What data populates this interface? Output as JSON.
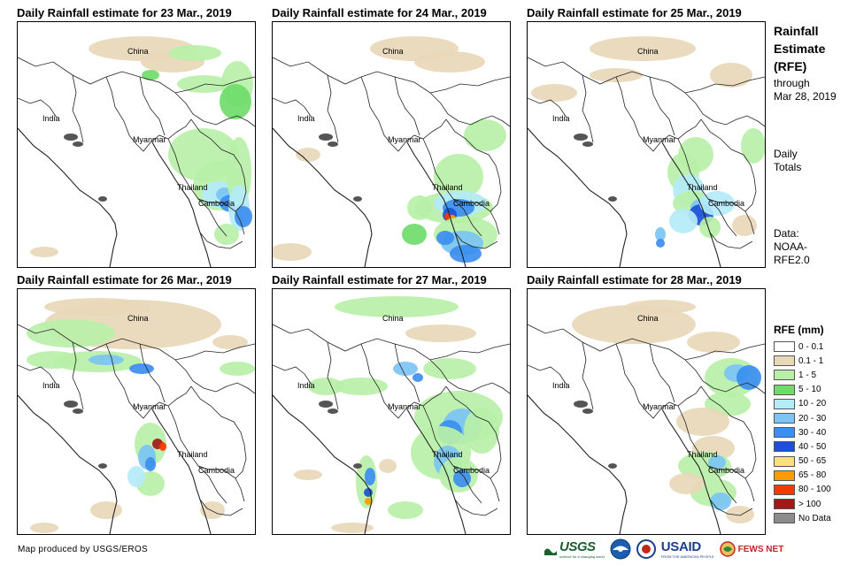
{
  "panels": [
    {
      "title": "Daily Rainfall estimate for 23 Mar., 2019"
    },
    {
      "title": "Daily Rainfall estimate for 24 Mar., 2019"
    },
    {
      "title": "Daily Rainfall estimate for 25 Mar., 2019"
    },
    {
      "title": "Daily Rainfall estimate for 26 Mar., 2019"
    },
    {
      "title": "Daily Rainfall estimate for 27 Mar., 2019"
    },
    {
      "title": "Daily Rainfall estimate for 28 Mar., 2019"
    }
  ],
  "map_labels": {
    "china": "China",
    "india": "India",
    "myanmar": "Myanmar",
    "thailand": "Thailand",
    "cambodia": "Cambodia"
  },
  "sidebar": {
    "title_line1": "Rainfall",
    "title_line2": "Estimate",
    "title_line3": "(RFE)",
    "through": "through",
    "date": "Mar 28, 2019",
    "daily": "Daily",
    "totals": "Totals",
    "data_label": "Data:",
    "data_source1": "NOAA-",
    "data_source2": "RFE2.0"
  },
  "legend": {
    "title": "RFE (mm)",
    "items": [
      {
        "label": "0 - 0.1",
        "color": "#ffffff"
      },
      {
        "label": "0.1 - 1",
        "color": "#e8d8b8"
      },
      {
        "label": "1 - 5",
        "color": "#b8f0a8"
      },
      {
        "label": "5 - 10",
        "color": "#6fdc6a"
      },
      {
        "label": "10 - 20",
        "color": "#b4ecf8"
      },
      {
        "label": "20 - 30",
        "color": "#7cc4f4"
      },
      {
        "label": "30 - 40",
        "color": "#3c8ef0"
      },
      {
        "label": "40 - 50",
        "color": "#1c50d8"
      },
      {
        "label": "50 - 65",
        "color": "#f8e080"
      },
      {
        "label": "65 - 80",
        "color": "#f89c00"
      },
      {
        "label": "80 - 100",
        "color": "#f83800"
      },
      {
        "label": "> 100",
        "color": "#a01818"
      },
      {
        "label": "No Data",
        "color": "#8c8c8c"
      }
    ]
  },
  "footer": {
    "credit": "Map produced by USGS/EROS"
  },
  "logos": {
    "usgs": "USGS",
    "usgs_tagline": "science for a changing world",
    "usaid": "USAID",
    "usaid_tagline": "FROM THE AMERICAN PEOPLE",
    "fewsnet": "FEWS NET"
  }
}
